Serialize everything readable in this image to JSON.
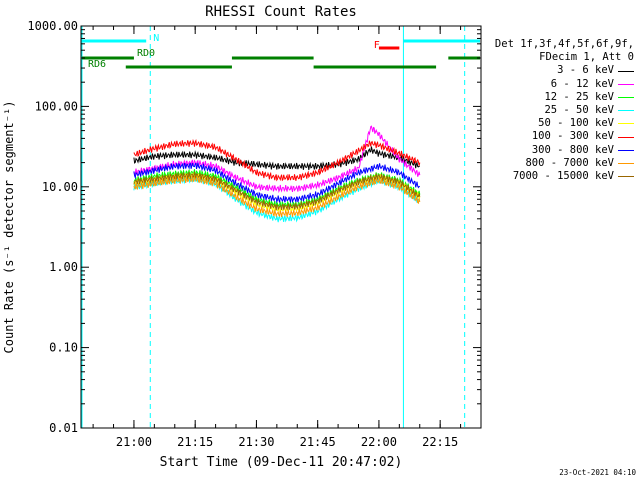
{
  "chart_data": {
    "type": "line",
    "title": "RHESSI Count Rates",
    "xlabel": "Start Time (09-Dec-11 20:47:02)",
    "ylabel": "Count Rate (s⁻¹ detector segment⁻¹)",
    "yscale": "log",
    "ylim": [
      0.01,
      1000
    ],
    "y_ticks": [
      0.01,
      0.1,
      1,
      10,
      100,
      1000
    ],
    "y_tick_labels": [
      "0.01",
      "0.10",
      "1.00",
      "10.00",
      "100.00",
      "1000.00"
    ],
    "xlim": [
      "20:47:02",
      "22:25:00"
    ],
    "x_ticks": [
      "21:00",
      "21:15",
      "21:30",
      "21:45",
      "22:00",
      "22:15"
    ],
    "grid": false,
    "legend_position": "right",
    "legend_header": [
      "Det 1f,3f,4f,5f,6f,9f,",
      "FDecim 1, Att 0"
    ],
    "series": [
      {
        "name": "3 - 6 keV",
        "color": "#000000",
        "x": [
          "21:00",
          "21:05",
          "21:10",
          "21:15",
          "21:20",
          "21:25",
          "21:30",
          "21:35",
          "21:40",
          "21:45",
          "21:50",
          "21:55",
          "21:58",
          "22:00",
          "22:05",
          "22:10"
        ],
        "y": [
          21,
          24,
          25,
          25,
          23,
          20,
          19,
          18,
          18,
          18,
          19,
          22,
          29,
          26,
          23,
          18
        ]
      },
      {
        "name": "6 - 12 keV",
        "color": "#ff00ff",
        "x": [
          "21:00",
          "21:05",
          "21:10",
          "21:15",
          "21:20",
          "21:25",
          "21:30",
          "21:35",
          "21:40",
          "21:45",
          "21:50",
          "21:55",
          "21:58",
          "22:00",
          "22:05",
          "22:10"
        ],
        "y": [
          15,
          17,
          19,
          20,
          18,
          13,
          10,
          9.5,
          9.5,
          10.5,
          13,
          17,
          55,
          45,
          22,
          14
        ]
      },
      {
        "name": "12 - 25 keV",
        "color": "#00ff00",
        "x": [
          "21:00",
          "21:05",
          "21:10",
          "21:15",
          "21:20",
          "21:25",
          "21:30",
          "21:35",
          "21:40",
          "21:45",
          "21:50",
          "21:55",
          "22:00",
          "22:05",
          "22:10"
        ],
        "y": [
          12,
          13.5,
          14.5,
          15,
          13.5,
          10,
          7,
          6,
          6,
          7,
          9.5,
          12,
          14,
          12,
          8
        ]
      },
      {
        "name": "25 - 50 keV",
        "color": "#00ffff",
        "x": [
          "21:00",
          "21:05",
          "21:10",
          "21:15",
          "21:20",
          "21:25",
          "21:30",
          "21:35",
          "21:40",
          "21:45",
          "21:50",
          "21:55",
          "22:00",
          "22:05",
          "22:10"
        ],
        "y": [
          10,
          11,
          12,
          12.5,
          11,
          7,
          4.8,
          4,
          4.1,
          5,
          7,
          9.5,
          12,
          10,
          6.5
        ]
      },
      {
        "name": "50 - 100 keV",
        "color": "#ffff00",
        "x": [
          "21:00",
          "21:05",
          "21:10",
          "21:15",
          "21:20",
          "21:25",
          "21:30",
          "21:35",
          "21:40",
          "21:45",
          "21:50",
          "21:55",
          "22:00",
          "22:05",
          "22:10"
        ],
        "y": [
          11,
          12,
          13,
          13.5,
          12,
          8.5,
          6,
          5.2,
          5.3,
          6.2,
          8.5,
          11,
          13,
          11,
          7.5
        ]
      },
      {
        "name": "100 - 300 keV",
        "color": "#ff0000",
        "x": [
          "21:00",
          "21:05",
          "21:10",
          "21:15",
          "21:20",
          "21:25",
          "21:30",
          "21:35",
          "21:40",
          "21:45",
          "21:50",
          "21:55",
          "21:58",
          "22:00",
          "22:05",
          "22:10"
        ],
        "y": [
          25,
          30,
          34,
          35,
          31,
          22,
          15,
          13,
          13,
          15,
          20,
          28,
          35,
          33,
          26,
          20
        ]
      },
      {
        "name": "300 - 800 keV",
        "color": "#0000ff",
        "x": [
          "21:00",
          "21:05",
          "21:10",
          "21:15",
          "21:20",
          "21:25",
          "21:30",
          "21:35",
          "21:40",
          "21:45",
          "21:50",
          "21:55",
          "22:00",
          "22:05",
          "22:10"
        ],
        "y": [
          14,
          16,
          18,
          18.5,
          16,
          11,
          8,
          7,
          7,
          8,
          11,
          15,
          18,
          15,
          10
        ]
      },
      {
        "name": "800 - 7000 keV",
        "color": "#ff9900",
        "x": [
          "21:00",
          "21:05",
          "21:10",
          "21:15",
          "21:20",
          "21:25",
          "21:30",
          "21:35",
          "21:40",
          "21:45",
          "21:50",
          "21:55",
          "22:00",
          "22:05",
          "22:10"
        ],
        "y": [
          10,
          11,
          12,
          12.5,
          11,
          7.5,
          5.3,
          4.6,
          4.7,
          5.5,
          7.5,
          10,
          12,
          10,
          6.5
        ]
      },
      {
        "name": "7000 - 15000 keV",
        "color": "#996600",
        "x": [
          "21:00",
          "21:05",
          "21:10",
          "21:15",
          "21:20",
          "21:25",
          "21:30",
          "21:35",
          "21:40",
          "21:45",
          "21:50",
          "21:55",
          "22:00",
          "22:05",
          "22:10"
        ],
        "y": [
          11.5,
          12.5,
          13.5,
          14,
          12.5,
          9,
          6.5,
          5.6,
          5.7,
          6.6,
          9,
          11.5,
          13.5,
          11.5,
          7.5
        ]
      }
    ],
    "annotations": [
      {
        "label": "N",
        "color": "#00ffff",
        "segments": [
          [
            "20:47:02",
            "21:03"
          ],
          [
            "22:06",
            "22:25"
          ]
        ]
      },
      {
        "label": "RD0",
        "color": "#008000",
        "segments": [
          [
            "20:47:02",
            "21:00"
          ],
          [
            "21:24",
            "21:44"
          ],
          [
            "22:17",
            "22:25"
          ]
        ]
      },
      {
        "label": "RD6",
        "color": "#008000",
        "segments": [
          [
            "20:58",
            "21:24"
          ],
          [
            "21:44",
            "22:14"
          ]
        ]
      },
      {
        "label": "F",
        "color": "#ff0000",
        "segments": [
          [
            "22:00",
            "22:05"
          ]
        ]
      }
    ],
    "vertical_lines": [
      {
        "x": "20:47:02",
        "style": "solid",
        "color": "#00ffff"
      },
      {
        "x": "21:04",
        "style": "dashed",
        "color": "#00ffff"
      },
      {
        "x": "22:06",
        "style": "solid",
        "color": "#00ffff"
      },
      {
        "x": "22:21",
        "style": "dashed",
        "color": "#00ffff"
      }
    ]
  },
  "footer_timestamp": "23-Oct-2021 04:10"
}
